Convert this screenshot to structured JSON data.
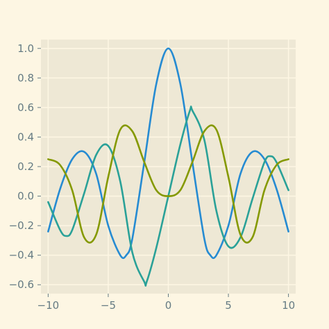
{
  "chart_data": {
    "type": "line",
    "title": "",
    "xlabel": "",
    "ylabel": "",
    "xlim": [
      -10.6,
      10.6
    ],
    "ylim": [
      -0.66,
      1.06
    ],
    "xticks": [
      -10,
      -5,
      0,
      5,
      10
    ],
    "xtick_labels": [
      "−10",
      "−5",
      "0",
      "5",
      "10"
    ],
    "yticks": [
      -0.6,
      -0.4,
      -0.2,
      0.0,
      0.2,
      0.4,
      0.6,
      0.8,
      1.0
    ],
    "ytick_labels": [
      "−0.6",
      "−0.4",
      "−0.2",
      "0.0",
      "0.2",
      "0.4",
      "0.6",
      "0.8",
      "1.0"
    ],
    "grid": true,
    "legend": "none",
    "colors": {
      "figure_bg": "#fdf6e3",
      "axes_bg": "#eee8d5",
      "grid": "#fdf6e3",
      "tick": "#657b83"
    },
    "series": [
      {
        "color": "#268bd2",
        "x": [
          -10,
          -9,
          -8,
          -7,
          -6,
          -5,
          -4,
          -3.5,
          -3,
          -2,
          -1,
          0,
          1,
          2,
          3,
          3.5,
          4,
          5,
          6,
          7,
          8,
          9,
          10
        ],
        "y": [
          -0.24,
          0.05,
          0.25,
          0.3,
          0.15,
          -0.2,
          -0.4,
          -0.4,
          -0.29,
          0.23,
          0.76,
          1.0,
          0.76,
          0.23,
          -0.29,
          -0.4,
          -0.4,
          -0.2,
          0.15,
          0.3,
          0.25,
          0.05,
          -0.24
        ]
      },
      {
        "color": "#2aa198",
        "x": [
          -10,
          -9,
          -8.5,
          -8,
          -7,
          -6,
          -5,
          -4,
          -3,
          -2,
          -1.8,
          -1,
          0,
          1,
          1.8,
          2,
          3,
          4,
          5,
          6,
          7,
          8,
          8.5,
          9,
          10
        ],
        "y": [
          -0.04,
          -0.23,
          -0.27,
          -0.23,
          0.02,
          0.28,
          0.34,
          0.1,
          -0.38,
          -0.58,
          -0.58,
          -0.35,
          0.0,
          0.35,
          0.58,
          0.58,
          0.38,
          -0.1,
          -0.34,
          -0.28,
          -0.02,
          0.23,
          0.27,
          0.23,
          0.04
        ]
      },
      {
        "color": "#859900",
        "x": [
          -10,
          -9,
          -8,
          -7,
          -6,
          -5,
          -4,
          -3,
          -2,
          -1,
          0,
          1,
          2,
          3,
          4,
          5,
          6,
          7,
          8,
          9,
          10
        ],
        "y": [
          0.25,
          0.21,
          0.04,
          -0.28,
          -0.26,
          0.13,
          0.45,
          0.44,
          0.23,
          0.04,
          0.0,
          0.04,
          0.23,
          0.44,
          0.45,
          0.13,
          -0.26,
          -0.28,
          0.04,
          0.21,
          0.25
        ]
      }
    ]
  }
}
